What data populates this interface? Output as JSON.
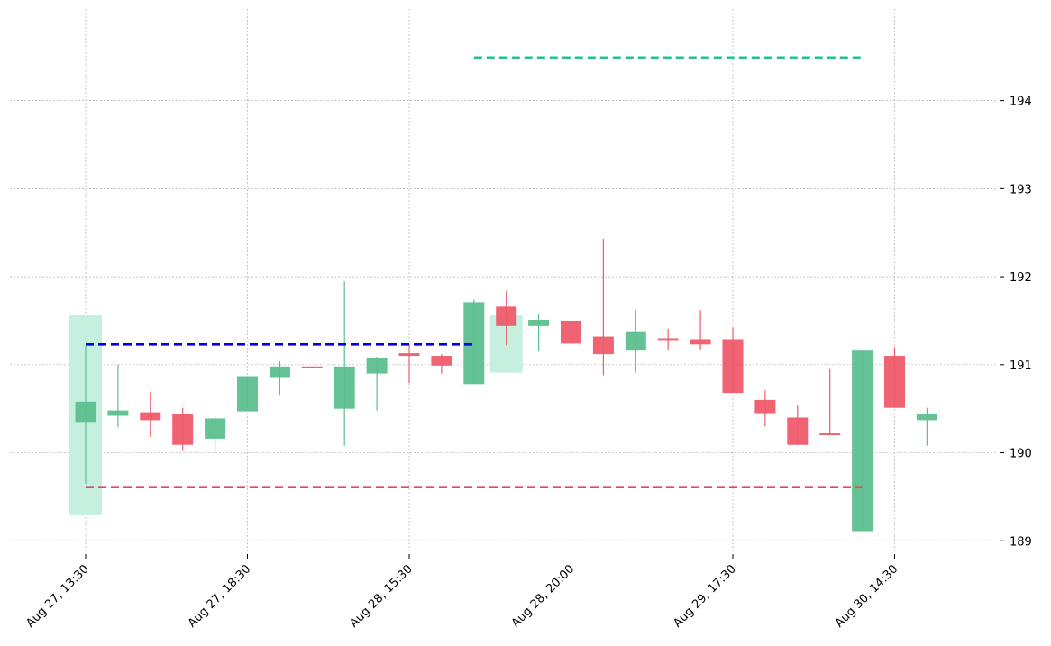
{
  "chart_data": {
    "type": "candlestick",
    "title": "",
    "xlabel": "",
    "ylabel": "",
    "ylim": [
      188.88,
      195.04
    ],
    "y_ticks": [
      189,
      190,
      191,
      192,
      193,
      194
    ],
    "y_tick_labels": [
      "189",
      "190",
      "191",
      "192",
      "193",
      "194"
    ],
    "x_tick_labels": [
      {
        "index": 0,
        "label": "Aug 27, 13:30"
      },
      {
        "index": 5,
        "label": "Aug 27, 18:30"
      },
      {
        "index": 10,
        "label": "Aug 28, 15:30"
      },
      {
        "index": 15,
        "label": "Aug 28, 20:00"
      },
      {
        "index": 20,
        "label": "Aug 29, 17:30"
      },
      {
        "index": 25,
        "label": "Aug 30, 14:30"
      }
    ],
    "grid": true,
    "candles": [
      {
        "open": 190.35,
        "high": 191.22,
        "low": 189.65,
        "close": 190.58
      },
      {
        "open": 190.42,
        "high": 191.0,
        "low": 190.29,
        "close": 190.48
      },
      {
        "open": 190.46,
        "high": 190.69,
        "low": 190.18,
        "close": 190.37
      },
      {
        "open": 190.44,
        "high": 190.51,
        "low": 190.02,
        "close": 190.09
      },
      {
        "open": 190.16,
        "high": 190.42,
        "low": 189.99,
        "close": 190.39
      },
      {
        "open": 190.47,
        "high": 190.87,
        "low": 190.47,
        "close": 190.87
      },
      {
        "open": 190.86,
        "high": 191.04,
        "low": 190.66,
        "close": 190.98
      },
      {
        "open": 190.98,
        "high": 190.98,
        "low": 190.96,
        "close": 190.97
      },
      {
        "open": 190.5,
        "high": 191.95,
        "low": 190.08,
        "close": 190.98
      },
      {
        "open": 190.9,
        "high": 191.09,
        "low": 190.48,
        "close": 191.08
      },
      {
        "open": 191.13,
        "high": 191.24,
        "low": 190.79,
        "close": 191.1
      },
      {
        "open": 191.1,
        "high": 191.12,
        "low": 190.9,
        "close": 190.99
      },
      {
        "open": 190.78,
        "high": 191.74,
        "low": 190.78,
        "close": 191.71
      },
      {
        "open": 191.66,
        "high": 191.84,
        "low": 191.22,
        "close": 191.44
      },
      {
        "open": 191.44,
        "high": 191.57,
        "low": 191.15,
        "close": 191.51
      },
      {
        "open": 191.5,
        "high": 191.5,
        "low": 191.23,
        "close": 191.24
      },
      {
        "open": 191.32,
        "high": 192.43,
        "low": 190.88,
        "close": 191.12
      },
      {
        "open": 191.16,
        "high": 191.62,
        "low": 190.91,
        "close": 191.38
      },
      {
        "open": 191.3,
        "high": 191.41,
        "low": 191.17,
        "close": 191.28
      },
      {
        "open": 191.29,
        "high": 191.62,
        "low": 191.17,
        "close": 191.23
      },
      {
        "open": 191.29,
        "high": 191.42,
        "low": 190.68,
        "close": 190.68
      },
      {
        "open": 190.6,
        "high": 190.71,
        "low": 190.3,
        "close": 190.45
      },
      {
        "open": 190.4,
        "high": 190.54,
        "low": 190.09,
        "close": 190.09
      },
      {
        "open": 190.22,
        "high": 190.95,
        "low": 190.2,
        "close": 190.2
      },
      {
        "open": 189.11,
        "high": 191.16,
        "low": 189.11,
        "close": 191.16
      },
      {
        "open": 191.1,
        "high": 191.2,
        "low": 190.51,
        "close": 190.51
      },
      {
        "open": 190.37,
        "high": 190.51,
        "low": 190.08,
        "close": 190.44
      }
    ],
    "highlights": [
      {
        "index": 0,
        "high": 191.56,
        "low": 189.29
      },
      {
        "index": 13,
        "high": 191.56,
        "low": 190.91
      }
    ],
    "levels": [
      {
        "value": 191.23,
        "from_index": 0,
        "to_index": 12,
        "color": "#0000ee",
        "style": "dashed"
      },
      {
        "value": 189.61,
        "from_index": 0,
        "to_index": 24,
        "color": "#e8455c",
        "style": "dashed"
      },
      {
        "value": 194.49,
        "from_index": 12,
        "to_index": 24,
        "color": "#26c28a",
        "style": "dashed"
      }
    ],
    "colors": {
      "up": "#5cbf8f",
      "down": "#ef5b6b",
      "highlight": "#c5f0e0",
      "grid": "#b0b0b0",
      "axis": "#000000"
    }
  }
}
